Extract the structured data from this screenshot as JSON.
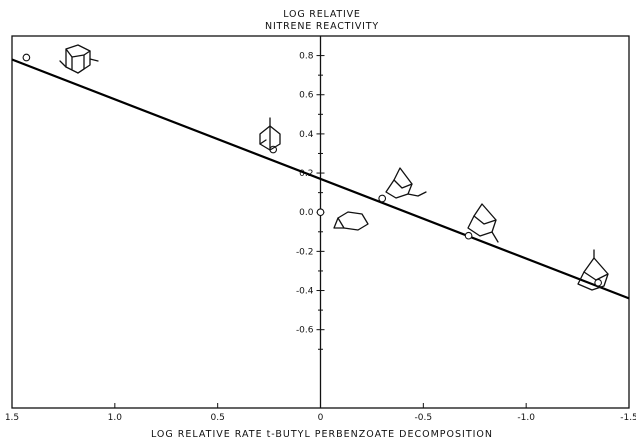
{
  "chart_data": {
    "type": "scatter",
    "title": [
      "LOG RELATIVE",
      "NITRENE REACTIVITY"
    ],
    "xlabel": "LOG RELATIVE RATE t-BUTYL PERBENZOATE DECOMPOSITION",
    "ylabel": "",
    "xlim": [
      1.5,
      -1.5
    ],
    "ylim": [
      -1.0,
      0.9
    ],
    "x_reversed": true,
    "x_ticks": [
      1.5,
      1.0,
      0.5,
      0,
      -0.5,
      -1.0,
      -1.5
    ],
    "x_tick_labels": [
      "1.5",
      "1.0",
      "0.5",
      "0",
      "-0.5",
      "-1.0",
      "-1.5"
    ],
    "y_ticks": [
      0.8,
      0.6,
      0.4,
      0.2,
      0.0,
      -0.2,
      -0.4,
      -0.6
    ],
    "y_tick_labels": [
      "0.8",
      "0.6",
      "0.4",
      "0.2",
      "0.0",
      "-0.2",
      "-0.4",
      "-0.6"
    ],
    "grid": false,
    "legend": "none",
    "points": [
      {
        "compound": "adamantane",
        "x": 1.43,
        "y": 0.79
      },
      {
        "compound": "bicyclo[2.2.2]octane",
        "x": 0.23,
        "y": 0.32
      },
      {
        "compound": "cyclohexane",
        "x": 0.0,
        "y": 0.0
      },
      {
        "compound": "2-methylnorbornane",
        "x": -0.3,
        "y": 0.07
      },
      {
        "compound": "norbornane",
        "x": -0.72,
        "y": -0.12
      },
      {
        "compound": "1-methylnorbornane",
        "x": -1.35,
        "y": -0.36
      }
    ],
    "fit_line": {
      "x": [
        1.5,
        -1.5
      ],
      "y": [
        0.78,
        -0.44
      ]
    }
  }
}
